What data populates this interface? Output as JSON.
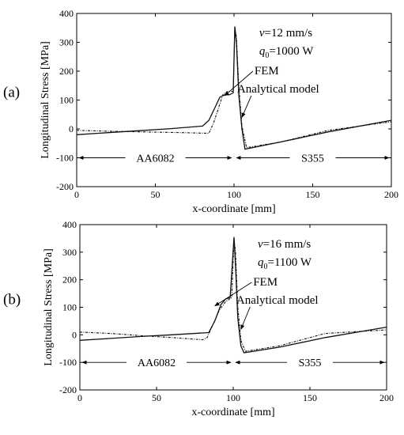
{
  "chart_data": [
    {
      "type": "line",
      "panel_label": "(a)",
      "xlabel": "x-coordinate [mm]",
      "ylabel": "Longitudinal Stress [MPa]",
      "xlim": [
        0,
        200
      ],
      "ylim": [
        -200,
        400
      ],
      "xticks": [
        "0",
        "50",
        "100",
        "150",
        "200"
      ],
      "yticks": [
        "-200",
        "-100",
        "0",
        "100",
        "200",
        "300",
        "400"
      ],
      "params": [
        "v=12 mm/s",
        "q0=1000 W"
      ],
      "param_parts": [
        {
          "sym": "v",
          "sub": "",
          "val": "=12 mm/s"
        },
        {
          "sym": "q",
          "sub": "0",
          "val": "=1000 W"
        }
      ],
      "regions": [
        {
          "label": "AA6082",
          "from": 0,
          "to": 100
        },
        {
          "label": "S355",
          "from": 100,
          "to": 200
        }
      ],
      "series": [
        {
          "name": "FEM",
          "x": [
            0,
            20,
            40,
            60,
            80,
            84,
            88,
            91,
            94,
            97,
            99.5,
            100.5,
            101.5,
            103,
            105,
            107,
            130,
            160,
            200
          ],
          "y": [
            -20,
            -13,
            -6,
            1,
            10,
            30,
            75,
            110,
            118,
            118,
            125,
            355,
            300,
            120,
            0,
            -70,
            -45,
            -10,
            30
          ]
        },
        {
          "name": "Analytical model",
          "x": [
            0,
            20,
            40,
            60,
            84,
            87,
            90,
            93,
            96,
            99.5,
            100.5,
            101.5,
            103,
            105,
            108,
            130,
            160,
            200
          ],
          "y": [
            -5,
            -8,
            -10,
            -12,
            -15,
            20,
            70,
            120,
            130,
            130,
            350,
            320,
            150,
            10,
            -65,
            -45,
            -5,
            25
          ]
        }
      ]
    },
    {
      "type": "line",
      "panel_label": "(b)",
      "xlabel": "x-coordinate [mm]",
      "ylabel": "Longitudinal Stress [MPa]",
      "xlim": [
        0,
        200
      ],
      "ylim": [
        -200,
        400
      ],
      "xticks": [
        "0",
        "50",
        "100",
        "150",
        "200"
      ],
      "yticks": [
        "-200",
        "-100",
        "0",
        "100",
        "200",
        "300",
        "400"
      ],
      "params": [
        "v=16 mm/s",
        "q0=1100 W"
      ],
      "param_parts": [
        {
          "sym": "v",
          "sub": "",
          "val": "=16 mm/s"
        },
        {
          "sym": "q",
          "sub": "0",
          "val": "=1100 W"
        }
      ],
      "regions": [
        {
          "label": "AA6082",
          "from": 0,
          "to": 100
        },
        {
          "label": "S355",
          "from": 100,
          "to": 200
        }
      ],
      "series": [
        {
          "name": "FEM",
          "x": [
            0,
            20,
            40,
            60,
            84,
            88,
            92,
            95,
            98,
            100.5,
            101.5,
            103,
            105,
            107,
            130,
            160,
            200
          ],
          "y": [
            -20,
            -13,
            -6,
            0,
            8,
            50,
            110,
            130,
            135,
            355,
            250,
            60,
            -40,
            -65,
            -45,
            -10,
            28
          ]
        },
        {
          "name": "Analytical model",
          "x": [
            0,
            20,
            40,
            60,
            80,
            83,
            87,
            91,
            95,
            99,
            100.5,
            101.5,
            103,
            105,
            108,
            130,
            160,
            200
          ],
          "y": [
            10,
            5,
            -3,
            -10,
            -18,
            -10,
            40,
            90,
            120,
            135,
            350,
            300,
            100,
            -20,
            -60,
            -40,
            5,
            18
          ]
        }
      ]
    }
  ]
}
